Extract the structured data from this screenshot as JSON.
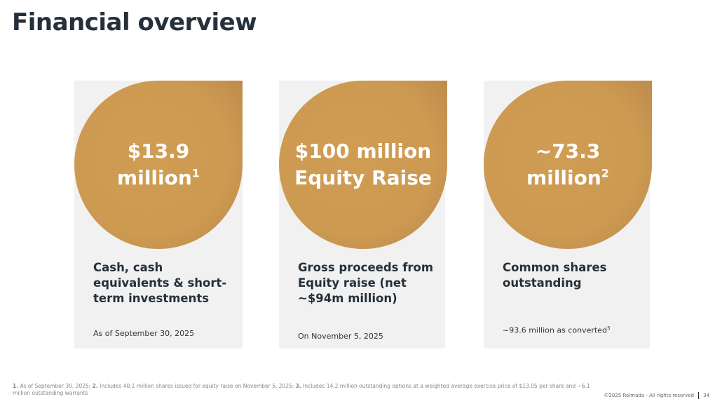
{
  "title": "Financial overview",
  "cards": [
    {
      "value_line1": "$13.9",
      "value_line2": "million",
      "value_sup": "1",
      "heading": "Cash, cash equivalents & short-term investments",
      "note": "As of September 30, 2025",
      "note_sup": ""
    },
    {
      "value_line1": "$100 million",
      "value_line2": "Equity Raise",
      "value_sup": "",
      "heading": "Gross proceeds from Equity raise (net ~$94m million)",
      "note": "On November 5, 2025",
      "note_sup": ""
    },
    {
      "value_line1": "~73.3",
      "value_line2": "million",
      "value_sup": "2",
      "heading": "Common shares outstanding",
      "note": "~93.6 million as converted",
      "note_sup": "3"
    }
  ],
  "footnotes": {
    "n1": "1.",
    "t1": " As of September 30, 2025; ",
    "n2": "2.",
    "t2": " Includes 40.1 million shares issued for equity raise on November 5, 2025; ",
    "n3": "3.",
    "t3": " Includes 14.2 million outstanding options at a weighted average exercise price of $13.05 per share and ~6.1 million outstanding warrants"
  },
  "copyright": "©2025 Relmada - All rights reserved",
  "page_number": "34",
  "colors": {
    "accent": "#cd9a52",
    "panel": "#f1f1f1",
    "text": "#25303b"
  }
}
